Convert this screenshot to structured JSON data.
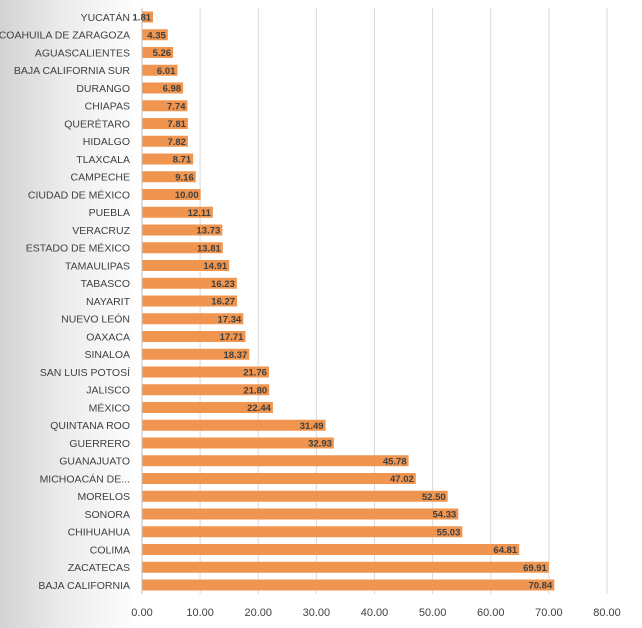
{
  "chart_data": {
    "type": "bar",
    "orientation": "horizontal",
    "title": "",
    "xlabel": "",
    "ylabel": "",
    "xlim": [
      0,
      80
    ],
    "x_ticks": [
      "0.00",
      "10.00",
      "20.00",
      "30.00",
      "40.00",
      "50.00",
      "60.00",
      "70.00",
      "80.00"
    ],
    "grid": true,
    "bar_color": "#F0954F",
    "categories": [
      "YUCATÁN",
      "COAHUILA DE ZARAGOZA",
      "AGUASCALIENTES",
      "BAJA CALIFORNIA SUR",
      "DURANGO",
      "CHIAPAS",
      "QUERÉTARO",
      "HIDALGO",
      "TLAXCALA",
      "CAMPECHE",
      "CIUDAD DE MÉXICO",
      "PUEBLA",
      "VERACRUZ",
      "ESTADO DE MÉXICO",
      "TAMAULIPAS",
      "TABASCO",
      "NAYARIT",
      "NUEVO LEÓN",
      "OAXACA",
      "SINALOA",
      "SAN LUIS POTOSÍ",
      "JALISCO",
      "MÉXICO",
      "QUINTANA ROO",
      "GUERRERO",
      "GUANAJUATO",
      "MICHOACÁN DE...",
      "MORELOS",
      "SONORA",
      "CHIHUAHUA",
      "COLIMA",
      "ZACATECAS",
      "BAJA CALIFORNIA"
    ],
    "values": [
      1.81,
      4.35,
      5.26,
      6.01,
      6.98,
      7.74,
      7.81,
      7.82,
      8.71,
      9.16,
      10.0,
      12.11,
      13.73,
      13.81,
      14.91,
      16.23,
      16.27,
      17.34,
      17.71,
      18.37,
      21.76,
      21.8,
      22.44,
      31.49,
      32.93,
      45.78,
      47.02,
      52.5,
      54.33,
      55.03,
      64.81,
      69.91,
      70.84
    ],
    "value_labels": [
      "1.81",
      "4.35",
      "5.26",
      "6.01",
      "6.98",
      "7.74",
      "7.81",
      "7.82",
      "8.71",
      "9.16",
      "10.00",
      "12.11",
      "13.73",
      "13.81",
      "14.91",
      "16.23",
      "16.27",
      "17.34",
      "17.71",
      "18.37",
      "21.76",
      "21.80",
      "22.44",
      "31.49",
      "32.93",
      "45.78",
      "47.02",
      "52.50",
      "54.33",
      "55.03",
      "64.81",
      "69.91",
      "70.84"
    ]
  }
}
